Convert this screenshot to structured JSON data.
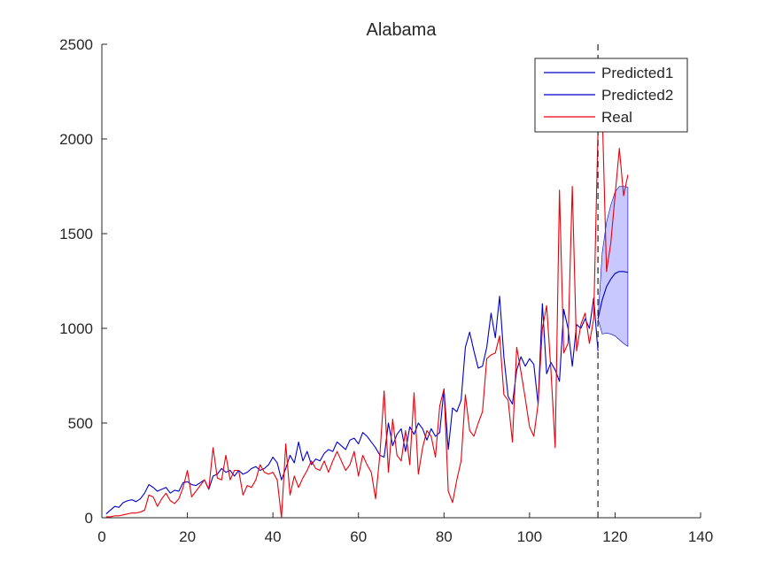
{
  "chart_data": {
    "type": "line",
    "title": "Alabama",
    "xlabel": "",
    "ylabel": "",
    "xlim": [
      0,
      140
    ],
    "ylim": [
      0,
      2500
    ],
    "x_ticks": [
      0,
      20,
      40,
      60,
      80,
      100,
      120,
      140
    ],
    "y_ticks": [
      0,
      500,
      1000,
      1500,
      2000,
      2500
    ],
    "grid": false,
    "legend_position": "top-right",
    "forecast_start_x": 116,
    "series": [
      {
        "name": "Predicted1",
        "color": "#0000cc",
        "x": [
          1,
          2,
          3,
          4,
          5,
          6,
          7,
          8,
          9,
          10,
          11,
          12,
          13,
          14,
          15,
          16,
          17,
          18,
          19,
          20,
          21,
          22,
          23,
          24,
          25,
          26,
          27,
          28,
          29,
          30,
          31,
          32,
          33,
          34,
          35,
          36,
          37,
          38,
          39,
          40,
          41,
          42,
          43,
          44,
          45,
          46,
          47,
          48,
          49,
          50,
          51,
          52,
          53,
          54,
          55,
          56,
          57,
          58,
          59,
          60,
          61,
          62,
          63,
          64,
          65,
          66,
          67,
          68,
          69,
          70,
          71,
          72,
          73,
          74,
          75,
          76,
          77,
          78,
          79,
          80,
          81,
          82,
          83,
          84,
          85,
          86,
          87,
          88,
          89,
          90,
          91,
          92,
          93,
          94,
          95,
          96,
          97,
          98,
          99,
          100,
          101,
          102,
          103,
          104,
          105,
          106,
          107,
          108,
          109,
          110,
          111,
          112,
          113,
          114,
          115,
          116
        ],
        "values": [
          20,
          40,
          60,
          55,
          80,
          90,
          95,
          85,
          100,
          130,
          175,
          160,
          140,
          150,
          160,
          130,
          145,
          140,
          185,
          190,
          175,
          170,
          185,
          200,
          150,
          220,
          230,
          260,
          240,
          250,
          220,
          250,
          230,
          240,
          260,
          270,
          250,
          260,
          280,
          320,
          290,
          200,
          260,
          330,
          290,
          400,
          300,
          350,
          280,
          310,
          300,
          340,
          360,
          350,
          400,
          380,
          360,
          410,
          420,
          390,
          450,
          430,
          400,
          370,
          330,
          320,
          500,
          380,
          440,
          470,
          350,
          480,
          440,
          500,
          470,
          410,
          470,
          430,
          450,
          680,
          360,
          580,
          560,
          620,
          900,
          980,
          880,
          790,
          800,
          900,
          1080,
          950,
          1170,
          850,
          640,
          600,
          780,
          850,
          800,
          840,
          810,
          600,
          1130,
          760,
          820,
          780,
          720,
          1100,
          1000,
          800,
          1020,
          1000,
          1050,
          1000,
          1160,
          880
        ],
        "band_x": [],
        "band_lower": [],
        "band_upper": []
      },
      {
        "name": "Predicted2",
        "color": "#0000cc",
        "x": [
          116,
          117,
          118,
          119,
          120,
          121,
          122,
          123
        ],
        "values": [
          1050,
          1150,
          1220,
          1260,
          1290,
          1300,
          1300,
          1295
        ],
        "band_x": [
          116,
          117,
          118,
          119,
          120,
          121,
          122,
          123
        ],
        "band_lower": [
          1050,
          970,
          975,
          970,
          960,
          940,
          920,
          905
        ],
        "band_upper": [
          1050,
          1400,
          1560,
          1650,
          1720,
          1750,
          1750,
          1745
        ],
        "band_color": "#c8c8ff"
      },
      {
        "name": "Real",
        "color": "#e8000b",
        "x": [
          1,
          2,
          3,
          4,
          5,
          6,
          7,
          8,
          9,
          10,
          11,
          12,
          13,
          14,
          15,
          16,
          17,
          18,
          19,
          20,
          21,
          22,
          23,
          24,
          25,
          26,
          27,
          28,
          29,
          30,
          31,
          32,
          33,
          34,
          35,
          36,
          37,
          38,
          39,
          40,
          41,
          42,
          43,
          44,
          45,
          46,
          47,
          48,
          49,
          50,
          51,
          52,
          53,
          54,
          55,
          56,
          57,
          58,
          59,
          60,
          61,
          62,
          63,
          64,
          65,
          66,
          67,
          68,
          69,
          70,
          71,
          72,
          73,
          74,
          75,
          76,
          77,
          78,
          79,
          80,
          81,
          82,
          83,
          84,
          85,
          86,
          87,
          88,
          89,
          90,
          91,
          92,
          93,
          94,
          95,
          96,
          97,
          98,
          99,
          100,
          101,
          102,
          103,
          104,
          105,
          106,
          107,
          108,
          109,
          110,
          111,
          112,
          113,
          114,
          115,
          116,
          117,
          118,
          119,
          120,
          121,
          122,
          123
        ],
        "values": [
          5,
          5,
          10,
          10,
          15,
          20,
          25,
          25,
          30,
          40,
          120,
          110,
          60,
          100,
          130,
          90,
          75,
          100,
          160,
          250,
          110,
          140,
          170,
          200,
          150,
          370,
          210,
          200,
          330,
          200,
          250,
          250,
          120,
          170,
          160,
          200,
          280,
          240,
          230,
          240,
          200,
          0,
          390,
          120,
          220,
          160,
          210,
          250,
          300,
          260,
          250,
          300,
          240,
          300,
          350,
          300,
          250,
          280,
          350,
          220,
          330,
          280,
          240,
          100,
          330,
          670,
          240,
          520,
          330,
          300,
          460,
          280,
          660,
          230,
          370,
          460,
          430,
          320,
          590,
          680,
          140,
          80,
          200,
          300,
          650,
          460,
          430,
          500,
          560,
          840,
          860,
          870,
          960,
          650,
          620,
          400,
          900,
          770,
          630,
          480,
          430,
          600,
          1000,
          1120,
          780,
          370,
          1730,
          870,
          920,
          1750,
          880,
          1020,
          1080,
          920,
          1050,
          2040,
          2150,
          1300,
          1450,
          1700,
          1950,
          1700,
          1810
        ]
      }
    ]
  }
}
